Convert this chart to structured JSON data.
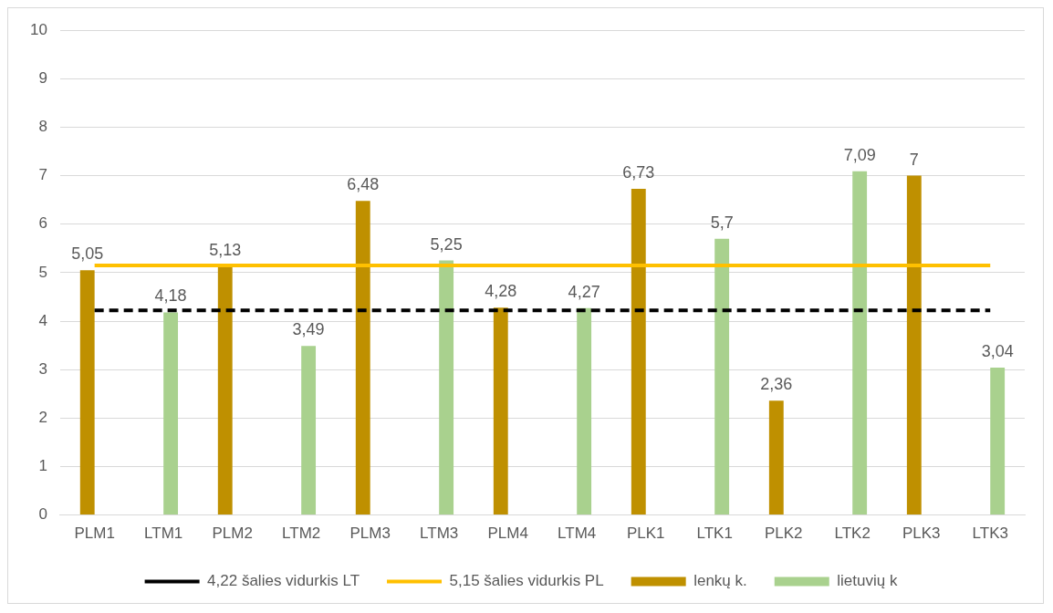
{
  "chart_data": {
    "type": "bar",
    "categories": [
      "PLM1",
      "LTM1",
      "PLM2",
      "LTM2",
      "PLM3",
      "LTM3",
      "PLM4",
      "LTM4",
      "PLK1",
      "LTK1",
      "PLK2",
      "LTK2",
      "PLK3",
      "LTK3"
    ],
    "series": [
      {
        "name": "lenkų k.",
        "color": "#bf9000",
        "values": [
          5.05,
          null,
          5.13,
          null,
          6.48,
          null,
          4.28,
          null,
          6.73,
          null,
          2.36,
          null,
          7,
          null
        ],
        "value_labels": [
          "5,05",
          null,
          "5,13",
          null,
          "6,48",
          null,
          "4,28",
          null,
          "6,73",
          null,
          "2,36",
          null,
          "7",
          null
        ]
      },
      {
        "name": "lietuvių k",
        "color": "#a9d18e",
        "values": [
          null,
          4.18,
          null,
          3.49,
          null,
          5.25,
          null,
          4.27,
          null,
          5.7,
          null,
          7.09,
          null,
          3.04
        ],
        "value_labels": [
          null,
          "4,18",
          null,
          "3,49",
          null,
          "5,25",
          null,
          "4,27",
          null,
          "5,7",
          null,
          "7,09",
          null,
          "3,04"
        ]
      },
      {
        "name": "4,22 šalies vidurkis LT",
        "type": "line",
        "line_style": "dashed",
        "color": "#000000",
        "values": [
          4.22,
          4.22,
          4.22,
          4.22,
          4.22,
          4.22,
          4.22,
          4.22,
          4.22,
          4.22,
          4.22,
          4.22,
          4.22,
          4.22
        ]
      },
      {
        "name": "5,15 šalies vidurkis PL",
        "type": "line",
        "line_style": "solid",
        "color": "#ffc000",
        "values": [
          5.15,
          5.15,
          5.15,
          5.15,
          5.15,
          5.15,
          5.15,
          5.15,
          5.15,
          5.15,
          5.15,
          5.15,
          5.15,
          5.15
        ]
      }
    ],
    "ylim": [
      0,
      10
    ],
    "yticks": [
      0,
      1,
      2,
      3,
      4,
      5,
      6,
      7,
      8,
      9,
      10
    ],
    "grid": "y",
    "legend": "bottom"
  }
}
